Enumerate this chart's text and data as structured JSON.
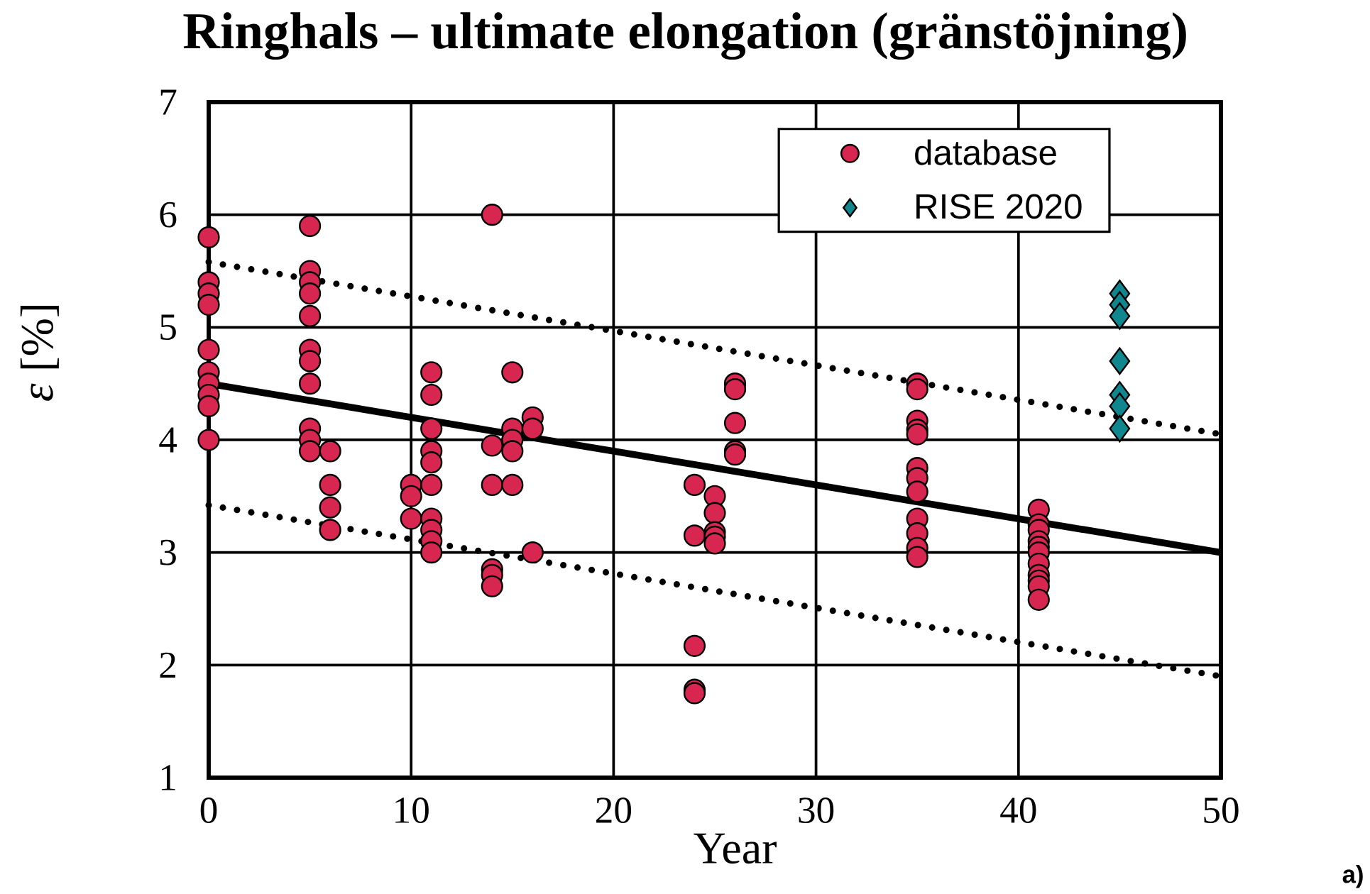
{
  "chart_data": {
    "type": "scatter",
    "title": "Ringhals – ultimate elongation (gränstöjning)",
    "xlabel": "Year",
    "ylabel": "*ε* [%]",
    "annotations": [
      "a)"
    ],
    "xlim": [
      0,
      50
    ],
    "ylim": [
      1,
      7
    ],
    "xticks": [
      0,
      10,
      20,
      30,
      40,
      50
    ],
    "yticks": [
      1,
      2,
      3,
      4,
      5,
      6,
      7
    ],
    "grid": true,
    "legend": "top right",
    "series": [
      {
        "type": "line",
        "color": "#000000",
        "marker": "none",
        "line_style": "solid",
        "x": [
          0,
          50
        ],
        "values": [
          4.5,
          3.0
        ]
      },
      {
        "type": "line",
        "color": "#000000",
        "marker": "none",
        "line_style": "dotted",
        "x": [
          0,
          50
        ],
        "values": [
          5.58,
          4.05
        ]
      },
      {
        "type": "line",
        "color": "#000000",
        "marker": "none",
        "line_style": "dotted",
        "x": [
          0,
          50
        ],
        "values": [
          3.42,
          1.9
        ]
      },
      {
        "name": "database",
        "color": "#d7264f",
        "marker": "circle",
        "x": [
          0,
          0,
          0,
          0,
          0,
          0,
          0,
          0,
          0,
          0,
          5,
          5,
          5,
          5,
          5,
          5,
          5,
          5,
          5,
          5,
          5,
          6,
          6,
          6,
          6,
          10,
          10,
          10,
          11,
          11,
          11,
          11,
          11,
          11,
          11,
          11,
          11,
          11,
          14,
          14,
          14,
          14,
          14,
          14,
          15,
          15,
          15,
          15,
          15,
          16,
          16,
          16,
          24,
          24,
          24,
          24,
          24,
          25,
          25,
          25,
          25,
          25,
          26,
          26,
          26,
          26,
          26,
          35,
          35,
          35,
          35,
          35,
          35,
          35,
          35,
          35,
          35,
          35,
          35,
          41,
          41,
          41,
          41,
          41,
          41,
          41,
          41,
          41,
          41,
          41
        ],
        "values": [
          5.8,
          5.4,
          5.3,
          5.2,
          4.8,
          4.6,
          4.5,
          4.4,
          4.3,
          4.0,
          5.9,
          5.5,
          5.4,
          5.3,
          5.1,
          4.8,
          4.7,
          4.5,
          4.1,
          4.0,
          3.9,
          3.9,
          3.6,
          3.4,
          3.2,
          3.6,
          3.5,
          3.3,
          4.6,
          4.4,
          4.1,
          3.9,
          3.8,
          3.6,
          3.3,
          3.2,
          3.1,
          3.0,
          6.0,
          3.95,
          3.6,
          2.85,
          2.8,
          2.7,
          4.6,
          4.1,
          4.0,
          3.9,
          3.6,
          4.2,
          4.1,
          3.0,
          3.6,
          3.15,
          2.17,
          1.78,
          1.75,
          3.5,
          3.35,
          3.18,
          3.14,
          3.08,
          4.5,
          4.45,
          4.15,
          3.9,
          3.87,
          4.5,
          4.45,
          4.17,
          4.09,
          4.05,
          3.75,
          3.66,
          3.54,
          3.3,
          3.17,
          3.04,
          2.96,
          3.38,
          3.25,
          3.2,
          3.1,
          3.05,
          3.0,
          2.9,
          2.8,
          2.75,
          2.7,
          2.58
        ]
      },
      {
        "name": "RISE 2020",
        "color": "#10878f",
        "marker": "diamond",
        "x": [
          45,
          45,
          45,
          45,
          45,
          45,
          45
        ],
        "values": [
          5.3,
          5.2,
          5.1,
          4.7,
          4.4,
          4.3,
          4.1
        ]
      }
    ]
  }
}
